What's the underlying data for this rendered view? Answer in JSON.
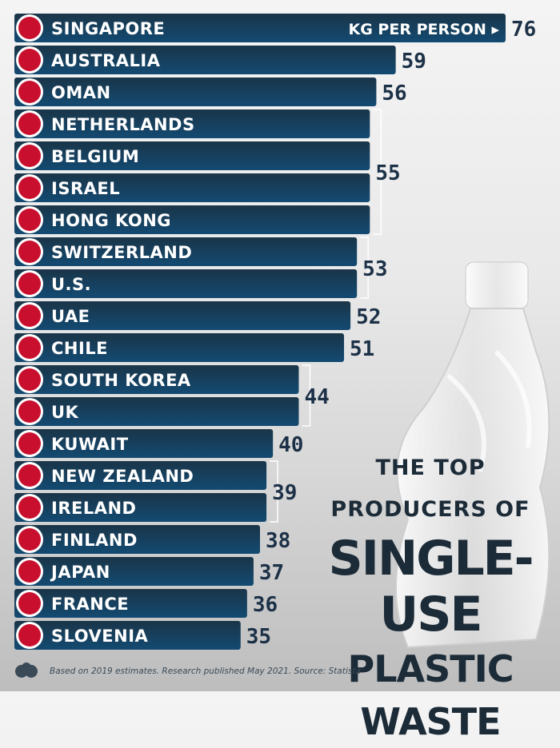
{
  "chart_data": {
    "type": "bar",
    "orientation": "horizontal",
    "unit_label": "KG PER PERSON ▸",
    "categories": [
      "SINGAPORE",
      "AUSTRALIA",
      "OMAN",
      "NETHERLANDS",
      "BELGIUM",
      "ISRAEL",
      "HONG KONG",
      "SWITZERLAND",
      "U.S.",
      "UAE",
      "CHILE",
      "SOUTH KOREA",
      "UK",
      "KUWAIT",
      "NEW ZEALAND",
      "IRELAND",
      "FINLAND",
      "JAPAN",
      "FRANCE",
      "SLOVENIA"
    ],
    "values": [
      76,
      59,
      56,
      55,
      55,
      55,
      55,
      53,
      53,
      52,
      51,
      44,
      44,
      40,
      39,
      39,
      38,
      37,
      36,
      35
    ],
    "flags": [
      "singapore-flag",
      "australia-flag",
      "oman-flag",
      "netherlands-flag",
      "belgium-flag",
      "israel-flag",
      "hong-kong-flag",
      "switzerland-flag",
      "us-flag",
      "uae-flag",
      "chile-flag",
      "south-korea-flag",
      "uk-flag",
      "kuwait-flag",
      "new-zealand-flag",
      "ireland-flag",
      "finland-flag",
      "japan-flag",
      "france-flag",
      "slovenia-flag"
    ],
    "value_groups": [
      {
        "label": "76",
        "rows": [
          0
        ]
      },
      {
        "label": "59",
        "rows": [
          1
        ]
      },
      {
        "label": "56",
        "rows": [
          2
        ]
      },
      {
        "label": "55",
        "rows": [
          3,
          4,
          5,
          6
        ]
      },
      {
        "label": "53",
        "rows": [
          7,
          8
        ]
      },
      {
        "label": "52",
        "rows": [
          9
        ]
      },
      {
        "label": "51",
        "rows": [
          10
        ]
      },
      {
        "label": "44",
        "rows": [
          11,
          12
        ]
      },
      {
        "label": "40",
        "rows": [
          13
        ]
      },
      {
        "label": "39",
        "rows": [
          14,
          15
        ]
      },
      {
        "label": "38",
        "rows": [
          16
        ]
      },
      {
        "label": "37",
        "rows": [
          17
        ]
      },
      {
        "label": "36",
        "rows": [
          18
        ]
      },
      {
        "label": "35",
        "rows": [
          19
        ]
      }
    ],
    "colors": {
      "bar_top": "#1a3548",
      "bar_bottom": "#134a72",
      "value_text": "#1c3147"
    }
  },
  "title": {
    "line1": "THE TOP PRODUCERS OF",
    "line2": "SINGLE-USE",
    "line3": "PLASTIC WASTE"
  },
  "footer": {
    "note": "Based on 2019 estimates. Research published May 2021. Source: Statista"
  }
}
